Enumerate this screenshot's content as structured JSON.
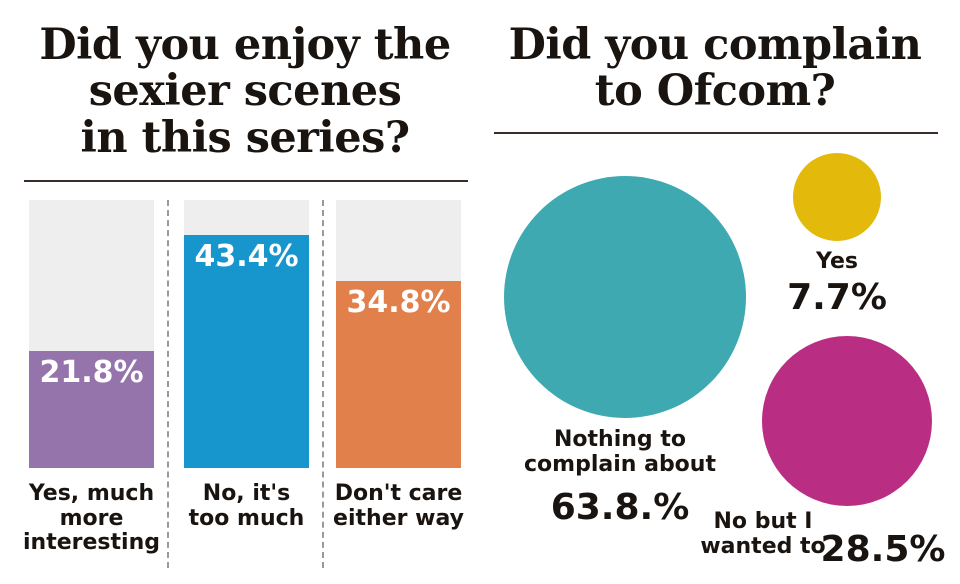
{
  "chart_data": [
    {
      "type": "bar",
      "title": "Did you enjoy the\nsexier scenes\nin this series?",
      "categories": [
        "Yes, much\nmore\ninteresting",
        "No, it's\ntoo much",
        "Don't care\neither way"
      ],
      "values": [
        21.8,
        43.4,
        34.8
      ],
      "value_labels": [
        "21.8%",
        "43.4%",
        "34.8%"
      ],
      "colors": [
        "#9474ab",
        "#1796cd",
        "#e1804a"
      ],
      "track_color": "#efeeee",
      "unit": "%",
      "ylim": [
        0,
        50
      ],
      "grid": false
    },
    {
      "type": "bubble",
      "title": "Did you complain\nto Ofcom?",
      "categories": [
        "Nothing to\ncomplain about",
        "Yes",
        "No but I\nwanted to"
      ],
      "values": [
        63.8,
        7.7,
        28.5
      ],
      "value_labels": [
        "63.8.%",
        "7.7%",
        "28.5%"
      ],
      "colors": [
        "#3fa9b2",
        "#e3b90c",
        "#b92d83"
      ],
      "unit": "%"
    }
  ]
}
